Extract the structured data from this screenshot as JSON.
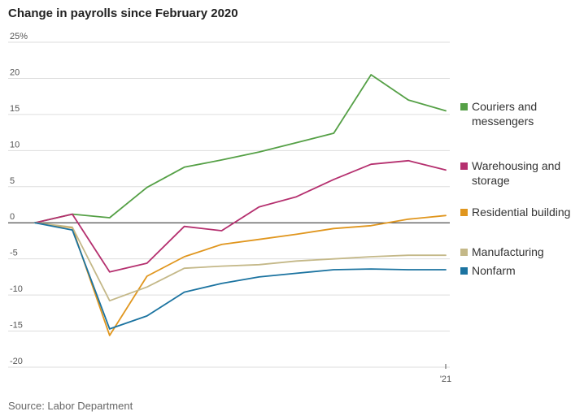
{
  "chart_data": {
    "type": "line",
    "title": "Change in payrolls since February 2020",
    "source": "Source: Labor Department",
    "ylim": [
      -20,
      25
    ],
    "y_ticks": [
      {
        "value": 25,
        "label": "25%"
      },
      {
        "value": 20,
        "label": "20"
      },
      {
        "value": 15,
        "label": "15"
      },
      {
        "value": 10,
        "label": "10"
      },
      {
        "value": 5,
        "label": "5"
      },
      {
        "value": 0,
        "label": "0"
      },
      {
        "value": -5,
        "label": "-5"
      },
      {
        "value": -10,
        "label": "-10"
      },
      {
        "value": -15,
        "label": "-15"
      },
      {
        "value": -20,
        "label": "-20"
      }
    ],
    "x": [
      "2020-02",
      "2020-03",
      "2020-04",
      "2020-05",
      "2020-06",
      "2020-07",
      "2020-08",
      "2020-09",
      "2020-10",
      "2020-11",
      "2020-12",
      "2021-01"
    ],
    "x_ticks": [
      {
        "x": "2021-01",
        "label": "'21"
      }
    ],
    "legend_position": "right",
    "series": [
      {
        "name": "Couriers and messengers",
        "color": "#55a046",
        "values": [
          0,
          1.2,
          0.7,
          4.9,
          7.7,
          8.7,
          9.8,
          11.1,
          12.4,
          20.5,
          17.0,
          15.5
        ]
      },
      {
        "name": "Warehousing and storage",
        "color": "#b5306f",
        "values": [
          0,
          1.2,
          -6.8,
          -5.6,
          -0.5,
          -1.1,
          2.2,
          3.6,
          6.0,
          8.1,
          8.6,
          7.3
        ]
      },
      {
        "name": "Residential building",
        "color": "#e0961e",
        "values": [
          0,
          -0.7,
          -15.6,
          -7.4,
          -4.7,
          -3.0,
          -2.3,
          -1.6,
          -0.8,
          -0.4,
          0.5,
          1.0
        ]
      },
      {
        "name": "Manufacturing",
        "color": "#c4b888",
        "values": [
          0,
          -0.6,
          -10.8,
          -8.9,
          -6.3,
          -6.0,
          -5.8,
          -5.3,
          -5.0,
          -4.7,
          -4.5,
          -4.5
        ]
      },
      {
        "name": "Nonfarm",
        "color": "#1b73a0",
        "values": [
          0,
          -1.0,
          -14.7,
          -12.9,
          -9.6,
          -8.4,
          -7.5,
          -7.0,
          -6.5,
          -6.4,
          -6.5,
          -6.5
        ]
      }
    ]
  }
}
